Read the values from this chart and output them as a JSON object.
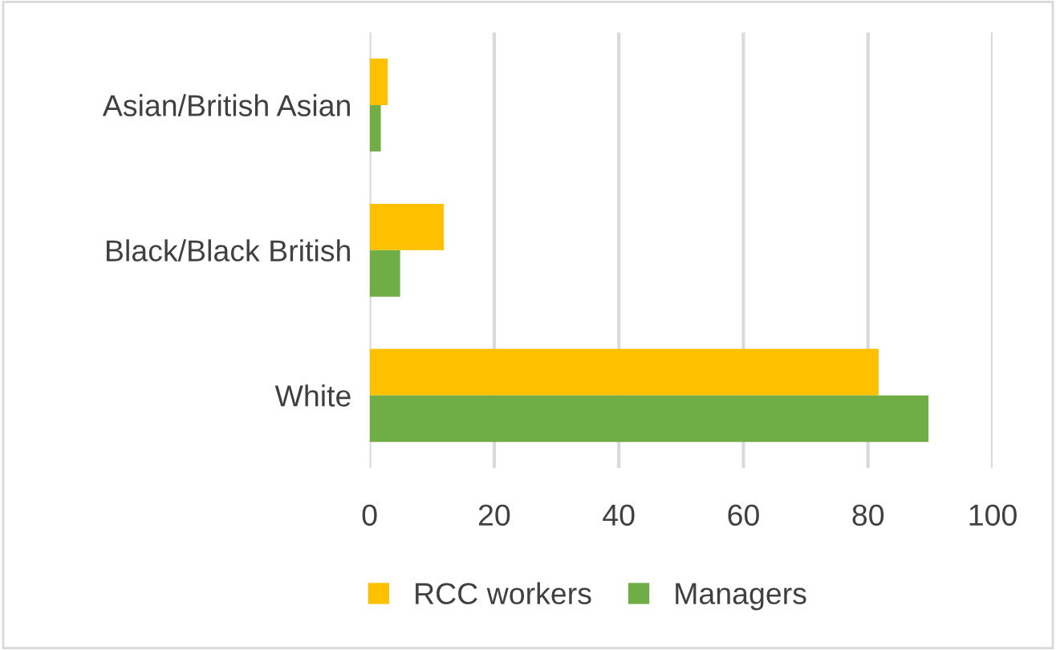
{
  "chart_data": {
    "type": "bar",
    "orientation": "horizontal",
    "categories": [
      "Asian/British Asian",
      "Black/Black British",
      "White"
    ],
    "series": [
      {
        "name": "RCC workers",
        "color": "#ffc000",
        "values": [
          2.9,
          11.9,
          81.7
        ]
      },
      {
        "name": "Managers",
        "color": "#70ad47",
        "values": [
          1.8,
          4.9,
          89.7
        ]
      }
    ],
    "xlim": [
      0,
      100
    ],
    "xticks": [
      0,
      20,
      40,
      60,
      80,
      100
    ],
    "grid": "x",
    "legend": "bottom"
  }
}
